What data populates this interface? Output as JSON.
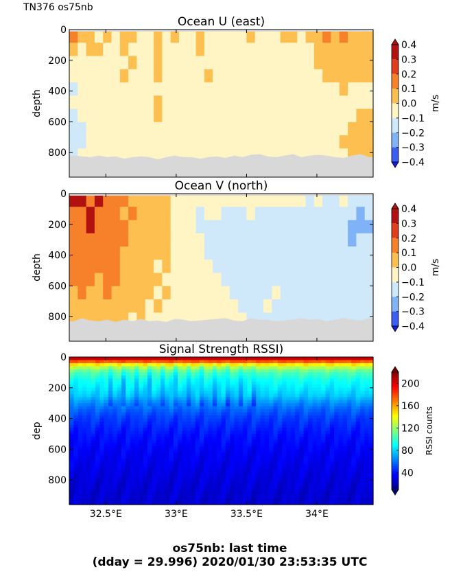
{
  "figure": {
    "corner_title": "TN376 os75nb",
    "footer_line1": "os75nb: last time",
    "footer_line2": "(dday = 29.996) 2020/01/30 23:53:35 UTC"
  },
  "colors": {
    "no_data": "#d8d8d8",
    "u_v_levels": [
      "#1a1aea",
      "#3b5df0",
      "#7fb2f7",
      "#cfe9fb",
      "#fff5c4",
      "#fdbf4f",
      "#f7812b",
      "#e23d1b",
      "#b2120f"
    ],
    "rssi_colormap": "jet"
  },
  "chart_data": [
    {
      "type": "heatmap",
      "title": "Ocean U (east)",
      "ylabel": "depth",
      "xlabel": "",
      "xlim": [
        32.24,
        34.4
      ],
      "ylim": [
        960,
        0
      ],
      "yticks": [
        0,
        200,
        400,
        600,
        800
      ],
      "xticks": [
        32.5,
        33.0,
        33.5,
        34.0
      ],
      "xtick_labels": [
        "",
        "",
        "",
        ""
      ],
      "colorbar": {
        "label": "m/s",
        "ticks": [
          0.4,
          0.3,
          0.2,
          0.1,
          0.0,
          -0.1,
          -0.2,
          -0.3,
          -0.4
        ],
        "tick_labels": [
          "0.4",
          "0.3",
          "0.2",
          "0.1",
          "0.0",
          "−0.1",
          "−0.2",
          "−0.3",
          "−0.4"
        ],
        "range": [
          -0.4,
          0.4
        ]
      },
      "bottom_depth": [
        820,
        825,
        830,
        820,
        830,
        825,
        840,
        830,
        825,
        830,
        845,
        830,
        820,
        830,
        830,
        840,
        830,
        825,
        835,
        820,
        830,
        815,
        810,
        825,
        830,
        820,
        810,
        830,
        820,
        815,
        820,
        830,
        835,
        820,
        810,
        830
      ],
      "rows": [
        [
          0.2,
          0.1,
          0.15,
          0.05,
          0.1,
          0.05,
          0.15,
          0.1,
          0.05,
          0.05,
          0.1,
          0.05,
          0.1,
          0.05,
          0.05,
          0.1,
          0.05,
          0.05,
          0.05,
          0.05,
          0.05,
          0.1,
          0.05,
          0.05,
          0.05,
          0.1,
          0.1,
          0.05,
          0.1,
          0.15,
          0.25,
          0.15,
          0.25,
          0.15,
          0.15,
          0.1
        ],
        [
          0.15,
          0.05,
          0.1,
          0.1,
          0.05,
          0.05,
          0.1,
          0.05,
          0.05,
          0.05,
          0.15,
          0.05,
          0.05,
          0.05,
          0.05,
          0.15,
          0.05,
          0.05,
          0.05,
          0.05,
          0.05,
          0.05,
          0.05,
          0.05,
          0.05,
          0.05,
          0.05,
          0.05,
          0.05,
          0.15,
          0.15,
          0.15,
          0.15,
          0.15,
          0.15,
          0.15
        ],
        [
          0.05,
          0.05,
          0.05,
          0.05,
          0.05,
          0.05,
          0.05,
          0.1,
          0.05,
          0.05,
          0.15,
          0.05,
          0.05,
          0.05,
          0.05,
          0.05,
          0.05,
          0.05,
          0.05,
          0.05,
          0.05,
          0.05,
          0.05,
          0.05,
          0.05,
          0.05,
          0.05,
          0.05,
          0.05,
          0.15,
          0.15,
          0.15,
          0.15,
          0.15,
          0.15,
          0.15
        ],
        [
          0.05,
          0.05,
          0.05,
          0.05,
          0.05,
          0.05,
          0.1,
          0.05,
          0.05,
          0.05,
          0.15,
          0.05,
          0.05,
          0.05,
          0.05,
          0.05,
          0.1,
          0.05,
          0.05,
          0.05,
          0.05,
          0.05,
          0.05,
          0.05,
          0.05,
          0.05,
          0.05,
          0.05,
          0.05,
          0.05,
          0.15,
          0.15,
          0.15,
          0.15,
          0.15,
          0.15
        ],
        [
          -0.05,
          0.05,
          0.05,
          0.05,
          0.05,
          0.05,
          0.05,
          0.05,
          0.05,
          0.05,
          0.05,
          0.05,
          0.05,
          0.05,
          0.05,
          0.05,
          0.05,
          0.05,
          0.05,
          0.05,
          0.05,
          0.05,
          0.05,
          0.05,
          0.05,
          0.05,
          0.05,
          0.05,
          0.05,
          0.05,
          0.05,
          0.05,
          0.15,
          0.05,
          0.05,
          0.05
        ],
        [
          0.05,
          0.05,
          0.05,
          0.05,
          0.05,
          0.05,
          0.05,
          0.05,
          0.05,
          0.05,
          0.15,
          0.05,
          0.05,
          0.05,
          0.05,
          0.05,
          0.05,
          0.05,
          0.05,
          0.05,
          0.05,
          0.05,
          0.05,
          0.05,
          0.05,
          0.05,
          0.05,
          0.05,
          0.05,
          0.05,
          0.05,
          0.05,
          0.05,
          0.05,
          0.05,
          0.05
        ],
        [
          -0.05,
          0.05,
          0.05,
          0.05,
          0.05,
          0.05,
          0.05,
          0.05,
          0.05,
          0.05,
          0.15,
          0.05,
          0.05,
          0.05,
          0.05,
          0.05,
          0.05,
          0.05,
          0.05,
          0.05,
          0.05,
          0.05,
          0.05,
          0.05,
          0.05,
          0.05,
          0.05,
          0.05,
          0.05,
          0.05,
          0.05,
          0.05,
          0.05,
          0.05,
          0.15,
          0.15
        ],
        [
          -0.05,
          -0.05,
          0.05,
          0.05,
          0.05,
          0.05,
          0.05,
          0.05,
          0.05,
          0.05,
          0.05,
          0.05,
          0.05,
          0.05,
          0.05,
          0.05,
          0.05,
          0.05,
          0.05,
          0.05,
          0.05,
          0.05,
          0.05,
          0.05,
          0.05,
          0.05,
          0.05,
          0.05,
          0.05,
          0.05,
          0.05,
          0.05,
          0.05,
          0.15,
          0.15,
          0.15
        ],
        [
          -0.05,
          -0.05,
          0.05,
          0.05,
          0.05,
          0.05,
          0.05,
          0.05,
          0.05,
          0.05,
          0.05,
          0.05,
          0.05,
          0.05,
          0.05,
          0.05,
          0.05,
          0.05,
          0.05,
          0.05,
          0.05,
          0.05,
          0.05,
          0.05,
          0.05,
          0.05,
          0.05,
          0.05,
          0.05,
          0.05,
          0.05,
          0.05,
          0.15,
          0.15,
          0.15,
          0.15
        ],
        [
          -0.05,
          0.05,
          0.05,
          0.05,
          0.05,
          0.05,
          0.05,
          0.05,
          0.05,
          0.05,
          0.05,
          0.05,
          0.05,
          0.05,
          0.05,
          0.05,
          0.05,
          0.05,
          0.05,
          0.05,
          0.05,
          0.05,
          0.05,
          0.05,
          0.05,
          0.05,
          0.05,
          0.05,
          0.05,
          0.05,
          0.05,
          0.05,
          0.05,
          0.15,
          0.15,
          0.15
        ]
      ]
    },
    {
      "type": "heatmap",
      "title": "Ocean V (north)",
      "ylabel": "depth",
      "xlabel": "",
      "xlim": [
        32.24,
        34.4
      ],
      "ylim": [
        960,
        0
      ],
      "yticks": [
        0,
        200,
        400,
        600,
        800
      ],
      "xticks": [
        32.5,
        33.0,
        33.5,
        34.0
      ],
      "xtick_labels": [
        "",
        "",
        "",
        ""
      ],
      "colorbar": {
        "label": "m/s",
        "ticks": [
          0.4,
          0.3,
          0.2,
          0.1,
          0.0,
          -0.1,
          -0.2,
          -0.3,
          -0.4
        ],
        "tick_labels": [
          "0.4",
          "0.3",
          "0.2",
          "0.1",
          "0.0",
          "−0.1",
          "−0.2",
          "−0.3",
          "−0.4"
        ],
        "range": [
          -0.4,
          0.4
        ]
      },
      "bottom_depth": [
        830,
        810,
        825,
        830,
        820,
        835,
        820,
        830,
        815,
        830,
        825,
        835,
        815,
        820,
        830,
        825,
        820,
        815,
        810,
        825,
        830,
        810,
        820,
        820,
        830,
        825,
        820,
        810,
        820,
        815,
        830,
        820,
        810,
        820,
        825,
        810
      ],
      "rows": [
        [
          0.35,
          0.35,
          0.25,
          0.35,
          0.25,
          0.25,
          0.25,
          0.15,
          0.15,
          0.15,
          0.15,
          0.15,
          0.05,
          0.05,
          0.05,
          0.05,
          0.05,
          0.05,
          0.05,
          0.05,
          0.05,
          0.05,
          0.05,
          0.05,
          0.05,
          0.05,
          0.05,
          0.05,
          -0.05,
          0.05,
          -0.05,
          -0.05,
          0.05,
          -0.05,
          -0.05,
          -0.05
        ],
        [
          0.25,
          0.25,
          0.35,
          0.25,
          0.25,
          0.25,
          0.15,
          0.25,
          0.15,
          0.15,
          0.15,
          0.15,
          0.05,
          0.05,
          0.05,
          -0.05,
          0.05,
          0.05,
          -0.05,
          -0.05,
          -0.05,
          0.05,
          -0.05,
          -0.05,
          -0.05,
          -0.05,
          -0.05,
          -0.05,
          -0.05,
          -0.05,
          -0.05,
          -0.05,
          -0.05,
          -0.05,
          -0.15,
          -0.05
        ],
        [
          0.25,
          0.25,
          0.35,
          0.25,
          0.25,
          0.25,
          0.25,
          0.15,
          0.15,
          0.15,
          0.15,
          0.15,
          0.05,
          0.05,
          0.05,
          -0.05,
          -0.05,
          -0.05,
          -0.05,
          -0.05,
          -0.05,
          -0.05,
          -0.05,
          -0.05,
          -0.05,
          -0.05,
          -0.05,
          -0.05,
          -0.05,
          -0.05,
          -0.05,
          -0.05,
          -0.05,
          -0.15,
          -0.15,
          -0.15
        ],
        [
          0.25,
          0.25,
          0.25,
          0.25,
          0.25,
          0.25,
          0.25,
          0.15,
          0.15,
          0.15,
          0.15,
          0.15,
          0.05,
          0.05,
          0.05,
          0.05,
          -0.05,
          -0.05,
          -0.05,
          -0.05,
          -0.05,
          -0.05,
          -0.05,
          -0.05,
          -0.05,
          -0.05,
          -0.05,
          -0.05,
          -0.05,
          -0.05,
          -0.05,
          -0.05,
          -0.05,
          -0.15,
          -0.05,
          -0.05
        ],
        [
          0.25,
          0.25,
          0.25,
          0.25,
          0.25,
          0.25,
          0.15,
          0.15,
          0.15,
          0.15,
          0.15,
          0.15,
          0.05,
          0.05,
          0.05,
          0.05,
          -0.05,
          -0.05,
          -0.05,
          -0.05,
          -0.05,
          -0.05,
          -0.05,
          -0.05,
          -0.05,
          -0.05,
          -0.05,
          -0.05,
          -0.05,
          -0.05,
          -0.05,
          -0.05,
          -0.05,
          -0.05,
          -0.05,
          -0.05
        ],
        [
          0.25,
          0.25,
          0.25,
          0.25,
          0.25,
          0.25,
          0.15,
          0.15,
          0.15,
          0.15,
          0.05,
          0.15,
          0.05,
          0.05,
          0.05,
          0.05,
          0.05,
          -0.05,
          -0.05,
          -0.05,
          -0.05,
          -0.05,
          -0.05,
          -0.05,
          -0.05,
          -0.05,
          -0.05,
          -0.05,
          -0.05,
          -0.05,
          -0.05,
          -0.05,
          -0.05,
          -0.05,
          -0.05,
          -0.05
        ],
        [
          0.25,
          0.25,
          0.25,
          0.15,
          0.25,
          0.25,
          0.15,
          0.15,
          0.15,
          0.15,
          0.15,
          0.05,
          0.05,
          0.05,
          0.05,
          0.05,
          0.05,
          0.05,
          -0.05,
          -0.05,
          -0.05,
          -0.05,
          -0.05,
          -0.05,
          -0.05,
          -0.05,
          -0.05,
          -0.05,
          -0.05,
          -0.05,
          -0.05,
          -0.05,
          -0.05,
          -0.05,
          -0.05,
          -0.05
        ],
        [
          0.15,
          0.25,
          0.15,
          0.15,
          0.25,
          0.15,
          0.15,
          0.15,
          0.15,
          0.15,
          0.05,
          0.15,
          0.05,
          0.05,
          0.05,
          0.05,
          0.05,
          0.05,
          0.05,
          -0.05,
          -0.05,
          -0.05,
          -0.05,
          -0.05,
          0.05,
          -0.05,
          -0.05,
          -0.05,
          -0.05,
          -0.05,
          -0.05,
          -0.05,
          -0.05,
          -0.05,
          -0.05,
          -0.05
        ],
        [
          0.15,
          0.15,
          0.15,
          0.15,
          0.15,
          0.15,
          0.15,
          0.15,
          0.15,
          0.05,
          0.15,
          0.05,
          0.05,
          0.05,
          0.05,
          0.05,
          0.05,
          0.05,
          0.05,
          0.05,
          -0.05,
          -0.05,
          -0.05,
          0.05,
          -0.05,
          -0.05,
          -0.05,
          -0.05,
          -0.05,
          -0.05,
          -0.05,
          -0.05,
          -0.05,
          -0.05,
          -0.05,
          -0.05
        ],
        [
          0.15,
          0.15,
          0.15,
          0.15,
          0.15,
          0.15,
          0.15,
          0.05,
          0.15,
          0.05,
          0.05,
          0.05,
          0.05,
          0.05,
          0.05,
          0.05,
          0.05,
          0.05,
          0.05,
          0.05,
          0.05,
          -0.05,
          -0.05,
          -0.05,
          -0.05,
          -0.05,
          -0.05,
          -0.05,
          -0.05,
          -0.05,
          -0.05,
          -0.05,
          -0.05,
          -0.05,
          -0.05,
          -0.05
        ]
      ]
    },
    {
      "type": "heatmap",
      "title": "Signal Strength RSSI)",
      "ylabel": "dep",
      "xlabel": "",
      "xlim": [
        32.24,
        34.4
      ],
      "ylim": [
        960,
        0
      ],
      "yticks": [
        0,
        200,
        400,
        600,
        800
      ],
      "xticks": [
        32.5,
        33.0,
        33.5,
        34.0
      ],
      "xtick_labels": [
        "32.5°E",
        "33°E",
        "33.5°E",
        "34°E"
      ],
      "colorbar": {
        "label": "RSSI counts",
        "ticks": [
          200,
          160,
          120,
          80,
          40
        ],
        "tick_labels": [
          "200",
          "160",
          "120",
          "80",
          "40"
        ],
        "range": [
          10,
          220
        ]
      },
      "depth_profile": {
        "depth": [
          10,
          30,
          60,
          100,
          150,
          200,
          250,
          300,
          350,
          400,
          450,
          500,
          600,
          700,
          800,
          900,
          960
        ],
        "rssi": [
          200,
          175,
          130,
          105,
          92,
          85,
          78,
          65,
          55,
          48,
          44,
          40,
          35,
          32,
          29,
          27,
          26
        ]
      }
    }
  ]
}
